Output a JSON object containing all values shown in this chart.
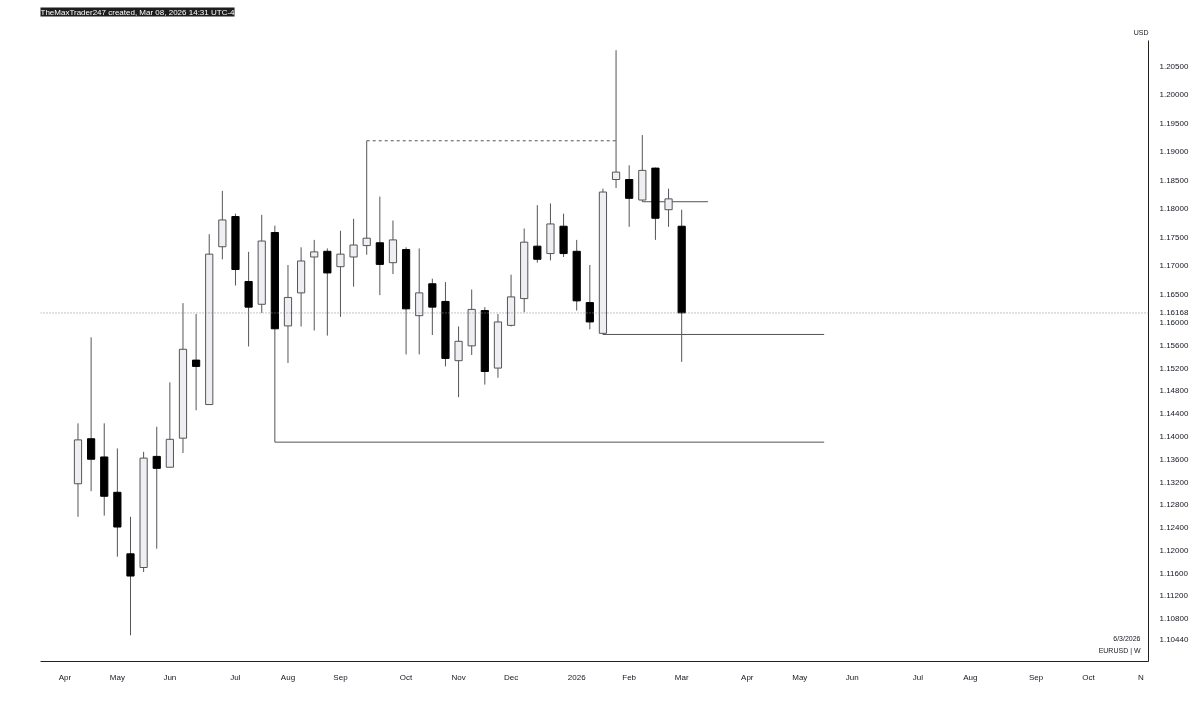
{
  "chart_data": {
    "type": "candlestick",
    "title": "TheMaxTrader247 created, Mar 08, 2026 14:31 UTC-4",
    "annotations": [
      "USD",
      "6/3/2026",
      "EURUSD | W"
    ],
    "x": [
      "2025-04-14",
      "2025-04-21",
      "2025-04-28",
      "2025-05-05",
      "2025-05-12",
      "2025-05-19",
      "2025-05-26",
      "2025-06-02",
      "2025-06-09",
      "2025-06-16",
      "2025-06-23",
      "2025-06-30",
      "2025-07-07",
      "2025-07-14",
      "2025-07-21",
      "2025-07-28",
      "2025-08-04",
      "2025-08-11",
      "2025-08-18",
      "2025-08-25",
      "2025-09-01",
      "2025-09-08",
      "2025-09-15",
      "2025-09-22",
      "2025-09-29",
      "2025-10-06",
      "2025-10-13",
      "2025-10-20",
      "2025-10-27",
      "2025-11-03",
      "2025-11-10",
      "2025-11-17",
      "2025-11-24",
      "2025-12-01",
      "2025-12-08",
      "2025-12-15",
      "2025-12-22",
      "2025-12-29",
      "2026-01-05",
      "2026-01-12",
      "2026-01-19",
      "2026-01-26",
      "2026-02-02",
      "2026-02-09",
      "2026-02-16",
      "2026-02-23",
      "2026-03-02"
    ],
    "ohlc": [
      [
        1.1317,
        1.1423,
        1.1259,
        1.1394
      ],
      [
        1.1396,
        1.1574,
        1.1304,
        1.136
      ],
      [
        1.1364,
        1.1423,
        1.1261,
        1.1295
      ],
      [
        1.1302,
        1.1379,
        1.1189,
        1.1241
      ],
      [
        1.1194,
        1.1259,
        1.1051,
        1.1155
      ],
      [
        1.117,
        1.1373,
        1.1162,
        1.1362
      ],
      [
        1.1365,
        1.1417,
        1.1203,
        1.1344
      ],
      [
        1.1346,
        1.1495,
        1.1346,
        1.1395
      ],
      [
        1.1397,
        1.1634,
        1.1371,
        1.1553
      ],
      [
        1.1534,
        1.1615,
        1.1446,
        1.1523
      ],
      [
        1.1456,
        1.1755,
        1.1456,
        1.172
      ],
      [
        1.1733,
        1.1831,
        1.1711,
        1.178
      ],
      [
        1.1786,
        1.1791,
        1.1665,
        1.1693
      ],
      [
        1.1672,
        1.1724,
        1.1558,
        1.1627
      ],
      [
        1.1632,
        1.1789,
        1.1617,
        1.1743
      ],
      [
        1.1758,
        1.177,
        1.139,
        1.1589
      ],
      [
        1.1594,
        1.1701,
        1.1529,
        1.1644
      ],
      [
        1.1652,
        1.1732,
        1.1593,
        1.1708
      ],
      [
        1.1715,
        1.1745,
        1.1586,
        1.1724
      ],
      [
        1.1725,
        1.173,
        1.1577,
        1.1687
      ],
      [
        1.1698,
        1.1761,
        1.161,
        1.172
      ],
      [
        1.1715,
        1.1782,
        1.1663,
        1.1736
      ],
      [
        1.1735,
        1.1919,
        1.1719,
        1.1748
      ],
      [
        1.174,
        1.1821,
        1.1648,
        1.1702
      ],
      [
        1.1705,
        1.1779,
        1.1685,
        1.1745
      ],
      [
        1.1728,
        1.1732,
        1.1544,
        1.1624
      ],
      [
        1.1612,
        1.173,
        1.1544,
        1.1652
      ],
      [
        1.1668,
        1.1677,
        1.1578,
        1.1627
      ],
      [
        1.1637,
        1.1671,
        1.1523,
        1.1537
      ],
      [
        1.1533,
        1.1593,
        1.1469,
        1.1567
      ],
      [
        1.1559,
        1.1658,
        1.1543,
        1.1623
      ],
      [
        1.1621,
        1.1627,
        1.1491,
        1.1514
      ],
      [
        1.152,
        1.1615,
        1.1503,
        1.1601
      ],
      [
        1.1595,
        1.1684,
        1.1593,
        1.1645
      ],
      [
        1.1642,
        1.1765,
        1.1618,
        1.1741
      ],
      [
        1.1734,
        1.1806,
        1.1705,
        1.1711
      ],
      [
        1.1721,
        1.1809,
        1.1709,
        1.1773
      ],
      [
        1.1769,
        1.1791,
        1.1715,
        1.1721
      ],
      [
        1.1725,
        1.1745,
        1.1621,
        1.1638
      ],
      [
        1.1635,
        1.1701,
        1.1588,
        1.1601
      ],
      [
        1.1581,
        1.1835,
        1.1579,
        1.1829
      ],
      [
        1.1851,
        1.2078,
        1.1836,
        1.1864
      ],
      [
        1.1851,
        1.1876,
        1.1768,
        1.1818
      ],
      [
        1.1815,
        1.1929,
        1.1812,
        1.1867
      ],
      [
        1.1871,
        1.1872,
        1.1745,
        1.1783
      ],
      [
        1.1798,
        1.1835,
        1.1768,
        1.1817
      ],
      [
        1.1769,
        1.1798,
        1.1531,
        1.1617
      ]
    ],
    "colors": [
      "#eeeef3",
      "#000000",
      "#000000",
      "#000000",
      "#000000",
      "#eeeef3",
      "#000000",
      "#eeeef3",
      "#eeeef3",
      "#000000",
      "#eeeef3",
      "#eeeef3",
      "#000000",
      "#000000",
      "#eeeef3",
      "#000000",
      "#eeeef3",
      "#eeeef3",
      "#eeeef3",
      "#000000",
      "#eeeef3",
      "#eeeef3",
      "#eeeef3",
      "#000000",
      "#eeeef3",
      "#000000",
      "#eeeef3",
      "#000000",
      "#000000",
      "#eeeef3",
      "#eeeef3",
      "#000000",
      "#eeeef3",
      "#eeeef3",
      "#eeeef3",
      "#000000",
      "#eeeef3",
      "#000000",
      "#000000",
      "#000000",
      "#eeeef3",
      "#eeeef3",
      "#000000",
      "#eeeef3",
      "#000000",
      "#eeeef3",
      "#000000"
    ],
    "series": [
      {
        "type": "line",
        "x": [
          "2025-09-15",
          "2026-01-26"
        ],
        "values": [
          1.1919,
          1.1919
        ],
        "color": "#555555",
        "line_style": "dashed"
      },
      {
        "type": "line",
        "x": [
          "2025-07-28",
          "2026-05-17"
        ],
        "values": [
          1.139,
          1.139
        ],
        "color": "#555555",
        "line_style": "solid"
      },
      {
        "type": "line",
        "x": [
          "2026-01-19",
          "2026-05-17"
        ],
        "values": [
          1.1579,
          1.1579
        ],
        "color": "#555555",
        "line_style": "solid"
      },
      {
        "type": "line",
        "x": [
          "2026-02-09",
          "2026-03-16"
        ],
        "values": [
          1.1812,
          1.1812
        ],
        "color": "#555555",
        "line_style": "solid"
      }
    ],
    "ref_lines": [
      {
        "axis": "y",
        "value": 1.16168,
        "label": "1.16168",
        "color": "#888888",
        "line_style": "dotted"
      }
    ],
    "xlim": [
      "2025-03-25",
      "2026-11-06"
    ],
    "xticks": [
      {
        "value": "2025-04-07",
        "label": "Apr"
      },
      {
        "value": "2025-05-05",
        "label": "May"
      },
      {
        "value": "2025-06-02",
        "label": "Jun"
      },
      {
        "value": "2025-07-07",
        "label": "Jul"
      },
      {
        "value": "2025-08-04",
        "label": "Aug"
      },
      {
        "value": "2025-09-01",
        "label": "Sep"
      },
      {
        "value": "2025-10-06",
        "label": "Oct"
      },
      {
        "value": "2025-11-03",
        "label": "Nov"
      },
      {
        "value": "2025-12-01",
        "label": "Dec"
      },
      {
        "value": "2026-01-05",
        "label": "2026"
      },
      {
        "value": "2026-02-02",
        "label": "Feb"
      },
      {
        "value": "2026-03-02",
        "label": "Mar"
      },
      {
        "value": "2026-04-06",
        "label": "Apr"
      },
      {
        "value": "2026-05-04",
        "label": "May"
      },
      {
        "value": "2026-06-01",
        "label": "Jun"
      },
      {
        "value": "2026-07-06",
        "label": "Jul"
      },
      {
        "value": "2026-08-03",
        "label": "Aug"
      },
      {
        "value": "2026-09-07",
        "label": "Sep"
      },
      {
        "value": "2026-10-05",
        "label": "Oct"
      },
      {
        "value": "2026-11-02",
        "label": "N"
      }
    ],
    "ylim": [
      1.1005,
      1.2095
    ],
    "yticks": [
      {
        "value": 1.1044,
        "label": "1.10440"
      },
      {
        "value": 1.108,
        "label": "1.10800"
      },
      {
        "value": 1.112,
        "label": "1.11200"
      },
      {
        "value": 1.116,
        "label": "1.11600"
      },
      {
        "value": 1.12,
        "label": "1.12000"
      },
      {
        "value": 1.124,
        "label": "1.12400"
      },
      {
        "value": 1.128,
        "label": "1.12800"
      },
      {
        "value": 1.132,
        "label": "1.13200"
      },
      {
        "value": 1.136,
        "label": "1.13600"
      },
      {
        "value": 1.14,
        "label": "1.14000"
      },
      {
        "value": 1.144,
        "label": "1.14400"
      },
      {
        "value": 1.148,
        "label": "1.14800"
      },
      {
        "value": 1.152,
        "label": "1.15200"
      },
      {
        "value": 1.156,
        "label": "1.15600"
      },
      {
        "value": 1.16,
        "label": "1.16000"
      },
      {
        "value": 1.165,
        "label": "1.16500"
      },
      {
        "value": 1.17,
        "label": "1.17000"
      },
      {
        "value": 1.175,
        "label": "1.17500"
      },
      {
        "value": 1.18,
        "label": "1.18000"
      },
      {
        "value": 1.185,
        "label": "1.18500"
      },
      {
        "value": 1.19,
        "label": "1.19000"
      },
      {
        "value": 1.195,
        "label": "1.19500"
      },
      {
        "value": 1.2,
        "label": "1.20000"
      },
      {
        "value": 1.205,
        "label": "1.20500"
      }
    ],
    "grid": false
  }
}
